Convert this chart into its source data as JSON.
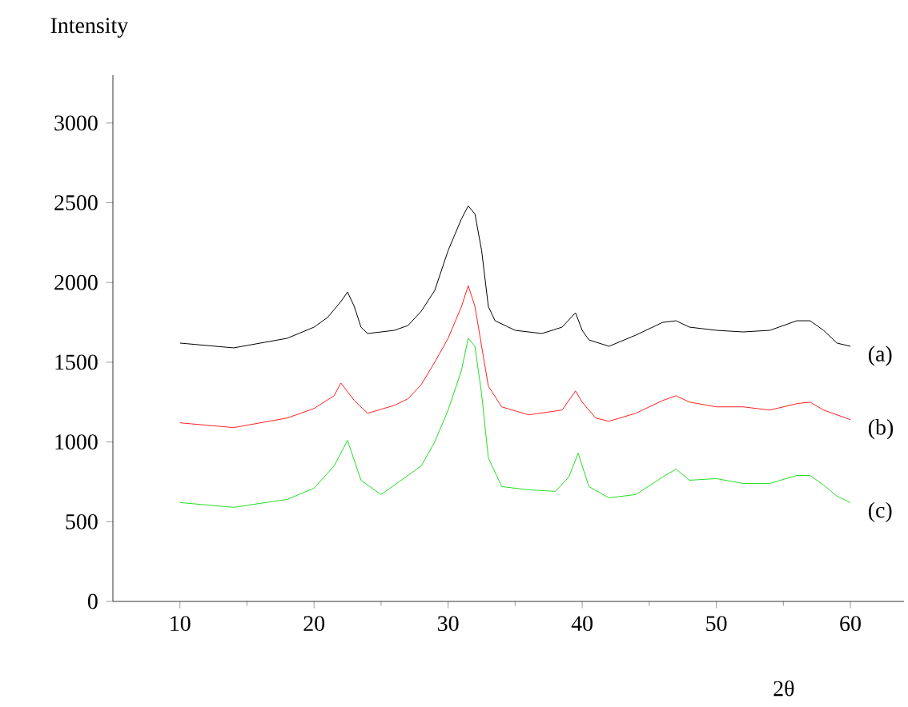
{
  "chart_data": {
    "type": "line",
    "xlabel": "2θ",
    "ylabel": "Intensity",
    "xlim": [
      5,
      64
    ],
    "ylim": [
      0,
      3300
    ],
    "xticks": [
      10,
      20,
      30,
      40,
      50,
      60
    ],
    "yticks": [
      0,
      500,
      1000,
      1500,
      2000,
      2500,
      3000
    ],
    "legend": false,
    "grid": false,
    "marker": "none",
    "line_style": "solid",
    "series": [
      {
        "name": "(a)",
        "color": "#000000",
        "x": [
          10,
          14,
          18,
          20,
          21,
          22,
          22.5,
          23,
          23.5,
          24,
          26,
          27,
          28,
          29,
          30,
          30.5,
          31,
          31.5,
          32,
          32.5,
          33,
          33.5,
          35,
          37,
          38.5,
          39.5,
          40,
          40.5,
          42,
          44,
          46,
          47,
          48,
          50,
          52,
          54,
          56,
          57,
          58,
          59,
          60
        ],
        "values": [
          1620,
          1590,
          1650,
          1720,
          1780,
          1880,
          1940,
          1850,
          1720,
          1680,
          1700,
          1730,
          1820,
          1950,
          2200,
          2300,
          2400,
          2480,
          2430,
          2200,
          1850,
          1760,
          1700,
          1680,
          1720,
          1810,
          1700,
          1640,
          1600,
          1670,
          1750,
          1760,
          1720,
          1700,
          1690,
          1700,
          1760,
          1760,
          1700,
          1620,
          1600
        ]
      },
      {
        "name": "(b)",
        "color": "#ff2020",
        "x": [
          10,
          14,
          18,
          20,
          21.5,
          22,
          23,
          24,
          26,
          27,
          28,
          29,
          30,
          31,
          31.5,
          32,
          32.5,
          33,
          34,
          36,
          38.5,
          39.5,
          40,
          41,
          42,
          44,
          46,
          47,
          48,
          50,
          52,
          54,
          56,
          57,
          58,
          60
        ],
        "values": [
          1120,
          1090,
          1150,
          1210,
          1290,
          1370,
          1260,
          1180,
          1230,
          1270,
          1360,
          1500,
          1650,
          1850,
          1980,
          1850,
          1600,
          1350,
          1220,
          1170,
          1200,
          1320,
          1250,
          1150,
          1130,
          1180,
          1260,
          1290,
          1250,
          1220,
          1220,
          1200,
          1240,
          1250,
          1200,
          1140
        ]
      },
      {
        "name": "(c)",
        "color": "#22dd22",
        "x": [
          10,
          14,
          18,
          20,
          21.5,
          22.5,
          23.5,
          25,
          26,
          28,
          29,
          30,
          31,
          31.5,
          32,
          32.5,
          33,
          34,
          36,
          38,
          39,
          39.7,
          40.5,
          42,
          44,
          46,
          47,
          48,
          50,
          52,
          54,
          56,
          57,
          58,
          59,
          60
        ],
        "values": [
          620,
          590,
          640,
          710,
          850,
          1010,
          760,
          670,
          730,
          850,
          1000,
          1200,
          1450,
          1650,
          1600,
          1300,
          900,
          720,
          700,
          690,
          780,
          930,
          720,
          650,
          670,
          780,
          830,
          760,
          770,
          740,
          740,
          790,
          790,
          730,
          660,
          620
        ]
      }
    ]
  }
}
